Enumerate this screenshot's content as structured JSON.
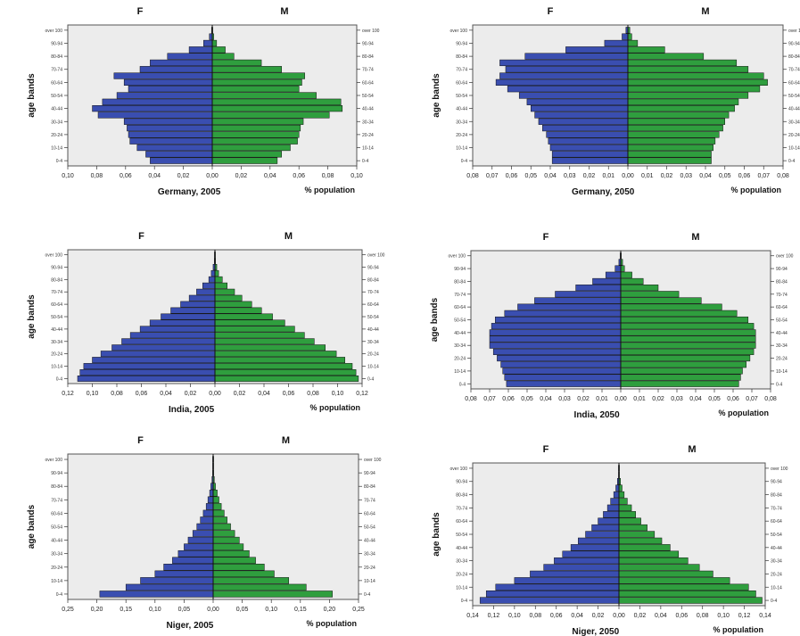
{
  "colors": {
    "female": "#3a4eb0",
    "male": "#2f9e3e",
    "plot_bg": "#ececec",
    "bar_edge": "#111111"
  },
  "shared_labels": {
    "female": "F",
    "male": "M",
    "ylabel": "age bands",
    "xunit": "% population"
  },
  "chart_data": [
    {
      "type": "bar",
      "orientation": "population-pyramid",
      "title": "Germany, 2005",
      "categories": [
        "0-4",
        "5-9",
        "10-14",
        "15-19",
        "20-24",
        "25-29",
        "30-34",
        "35-39",
        "40-44",
        "45-49",
        "50-54",
        "55-59",
        "60-64",
        "65-69",
        "70-74",
        "75-79",
        "80-84",
        "85-89",
        "90-94",
        "95-99",
        "over 100"
      ],
      "category_labels_left": [
        "0-4",
        "",
        "10-14",
        "",
        "20-24",
        "",
        "30-34",
        "",
        "40-44",
        "",
        "50-54",
        "",
        "60-64",
        "",
        "70-74",
        "",
        "80-84",
        "",
        "90-94",
        "",
        "over 100"
      ],
      "category_labels_right": [
        "0-4",
        "",
        "10-14",
        "",
        "20-24",
        "",
        "30-34",
        "",
        "40-44",
        "",
        "50-54",
        "",
        "60-64",
        "",
        "70-74",
        "",
        "80-84",
        "",
        "90-94",
        "",
        "over 100"
      ],
      "series": [
        {
          "name": "F",
          "values": [
            0.043,
            0.046,
            0.052,
            0.057,
            0.058,
            0.059,
            0.061,
            0.079,
            0.083,
            0.076,
            0.066,
            0.058,
            0.061,
            0.068,
            0.05,
            0.043,
            0.031,
            0.016,
            0.006,
            0.002,
            0.0005
          ]
        },
        {
          "name": "M",
          "values": [
            0.045,
            0.048,
            0.054,
            0.059,
            0.06,
            0.061,
            0.063,
            0.081,
            0.09,
            0.089,
            0.072,
            0.06,
            0.062,
            0.064,
            0.048,
            0.034,
            0.015,
            0.009,
            0.003,
            0.001,
            0.0003
          ]
        }
      ],
      "xlim": [
        -0.1,
        0.1
      ],
      "xticks": [
        -0.1,
        -0.08,
        -0.06,
        -0.04,
        -0.02,
        0,
        0.02,
        0.04,
        0.06,
        0.08,
        0.1
      ],
      "xtick_labels": [
        "0,10",
        "0,08",
        "0,06",
        "0,04",
        "0,02",
        "0,00",
        "0,02",
        "0,04",
        "0,06",
        "0,08",
        "0,10"
      ],
      "grid": false
    },
    {
      "type": "bar",
      "orientation": "population-pyramid",
      "title": "Germany, 2050",
      "categories": [
        "0-4",
        "5-9",
        "10-14",
        "15-19",
        "20-24",
        "25-29",
        "30-34",
        "35-39",
        "40-44",
        "45-49",
        "50-54",
        "55-59",
        "60-64",
        "65-69",
        "70-74",
        "75-79",
        "80-84",
        "85-89",
        "90-94",
        "95-99",
        "over 100"
      ],
      "category_labels_left": [
        "0-4",
        "",
        "10-14",
        "",
        "20-24",
        "",
        "30-34",
        "",
        "40-44",
        "",
        "50-54",
        "",
        "60-64",
        "",
        "70-74",
        "",
        "80-84",
        "",
        "90-94",
        "",
        "over 100"
      ],
      "category_labels_right": [
        "0-4",
        "",
        "10-14",
        "",
        "20-24",
        "",
        "30-34",
        "",
        "40-44",
        "",
        "50-54",
        "",
        "60-64",
        "",
        "70-74",
        "",
        "80-84",
        "",
        "90-94",
        "",
        "over 100"
      ],
      "series": [
        {
          "name": "F",
          "values": [
            0.039,
            0.039,
            0.04,
            0.041,
            0.042,
            0.044,
            0.046,
            0.048,
            0.05,
            0.052,
            0.056,
            0.062,
            0.068,
            0.066,
            0.063,
            0.066,
            0.053,
            0.032,
            0.012,
            0.003,
            0.001
          ]
        },
        {
          "name": "M",
          "values": [
            0.043,
            0.043,
            0.044,
            0.045,
            0.047,
            0.049,
            0.05,
            0.052,
            0.055,
            0.057,
            0.062,
            0.068,
            0.072,
            0.07,
            0.062,
            0.056,
            0.039,
            0.019,
            0.005,
            0.002,
            0.001
          ]
        }
      ],
      "xlim": [
        -0.08,
        0.08
      ],
      "xticks": [
        -0.08,
        -0.07,
        -0.06,
        -0.05,
        -0.04,
        -0.03,
        -0.02,
        -0.01,
        0,
        0.01,
        0.02,
        0.03,
        0.04,
        0.05,
        0.06,
        0.07,
        0.08
      ],
      "xtick_labels": [
        "0,08",
        "0,07",
        "0,06",
        "0,05",
        "0,04",
        "0,03",
        "0,02",
        "0,01",
        "0,00",
        "0,01",
        "0,02",
        "0,03",
        "0,04",
        "0,05",
        "0,06",
        "0,07",
        "0,08"
      ],
      "grid": false
    },
    {
      "type": "bar",
      "orientation": "population-pyramid",
      "title": "India, 2005",
      "categories": [
        "0-4",
        "5-9",
        "10-14",
        "15-19",
        "20-24",
        "25-29",
        "30-34",
        "35-39",
        "40-44",
        "45-49",
        "50-54",
        "55-59",
        "60-64",
        "65-69",
        "70-74",
        "75-79",
        "80-84",
        "85-89",
        "90-94",
        "95-99",
        "over 100"
      ],
      "category_labels_left": [
        "0-4",
        "",
        "10-14",
        "",
        "20-24",
        "",
        "30-34",
        "",
        "40-44",
        "",
        "50-54",
        "",
        "60-64",
        "",
        "70-74",
        "",
        "80-84",
        "",
        "90-94",
        "",
        "over 100"
      ],
      "category_labels_right": [
        "0-4",
        "",
        "10-14",
        "",
        "20-24",
        "",
        "30-34",
        "",
        "40-44",
        "",
        "50-54",
        "",
        "60-64",
        "",
        "70-74",
        "",
        "80-84",
        "",
        "90-94",
        "",
        "over 100"
      ],
      "series": [
        {
          "name": "F",
          "values": [
            0.112,
            0.11,
            0.107,
            0.1,
            0.093,
            0.084,
            0.076,
            0.069,
            0.061,
            0.053,
            0.044,
            0.036,
            0.028,
            0.021,
            0.015,
            0.01,
            0.005,
            0.003,
            0.0015,
            0.0005,
            0.0002
          ]
        },
        {
          "name": "M",
          "values": [
            0.117,
            0.115,
            0.112,
            0.106,
            0.099,
            0.09,
            0.081,
            0.073,
            0.065,
            0.057,
            0.047,
            0.038,
            0.03,
            0.022,
            0.016,
            0.01,
            0.006,
            0.003,
            0.0015,
            0.0005,
            0.0002
          ]
        }
      ],
      "xlim": [
        -0.12,
        0.12
      ],
      "xticks": [
        -0.12,
        -0.1,
        -0.08,
        -0.06,
        -0.04,
        -0.02,
        0,
        0.02,
        0.04,
        0.06,
        0.08,
        0.1,
        0.12
      ],
      "xtick_labels": [
        "0,12",
        "0,10",
        "0,08",
        "0,06",
        "0,04",
        "0,02",
        "0,00",
        "0,02",
        "0,04",
        "0,06",
        "0,08",
        "0,10",
        "0,12"
      ],
      "grid": false
    },
    {
      "type": "bar",
      "orientation": "population-pyramid",
      "title": "India, 2050",
      "categories": [
        "0-4",
        "5-9",
        "10-14",
        "15-19",
        "20-24",
        "25-29",
        "30-34",
        "35-39",
        "40-44",
        "45-49",
        "50-54",
        "55-59",
        "60-64",
        "65-69",
        "70-74",
        "75-79",
        "80-84",
        "85-89",
        "90-94",
        "95-99",
        "over 100"
      ],
      "category_labels_left": [
        "0-4",
        "",
        "10-14",
        "",
        "20-24",
        "",
        "30-34",
        "",
        "40-44",
        "",
        "50-54",
        "",
        "60-64",
        "",
        "70-74",
        "",
        "80-84",
        "",
        "90-94",
        "",
        "over 100"
      ],
      "category_labels_right": [
        "0-4",
        "",
        "10-14",
        "",
        "20-24",
        "",
        "30-34",
        "",
        "40-44",
        "",
        "50-54",
        "",
        "60-64",
        "",
        "70-74",
        "",
        "80-84",
        "",
        "90-94",
        "",
        "over 100"
      ],
      "series": [
        {
          "name": "F",
          "values": [
            0.061,
            0.062,
            0.063,
            0.064,
            0.066,
            0.068,
            0.07,
            0.07,
            0.07,
            0.069,
            0.067,
            0.062,
            0.055,
            0.046,
            0.035,
            0.024,
            0.015,
            0.008,
            0.003,
            0.001,
            0.0003
          ]
        },
        {
          "name": "M",
          "values": [
            0.063,
            0.064,
            0.065,
            0.067,
            0.069,
            0.071,
            0.072,
            0.072,
            0.072,
            0.071,
            0.068,
            0.062,
            0.054,
            0.043,
            0.031,
            0.02,
            0.012,
            0.006,
            0.002,
            0.001,
            0.0003
          ]
        }
      ],
      "xlim": [
        -0.08,
        0.08
      ],
      "xticks": [
        -0.08,
        -0.07,
        -0.06,
        -0.05,
        -0.04,
        -0.03,
        -0.02,
        -0.01,
        0,
        0.01,
        0.02,
        0.03,
        0.04,
        0.05,
        0.06,
        0.07,
        0.08
      ],
      "xtick_labels": [
        "0,08",
        "0,07",
        "0,06",
        "0,05",
        "0,04",
        "0,03",
        "0,02",
        "0,01",
        "0,00",
        "0,01",
        "0,02",
        "0,03",
        "0,04",
        "0,05",
        "0,06",
        "0,07",
        "0,08"
      ],
      "grid": false
    },
    {
      "type": "bar",
      "orientation": "population-pyramid",
      "title": "Niger, 2005",
      "categories": [
        "0-4",
        "5-9",
        "10-14",
        "15-19",
        "20-24",
        "25-29",
        "30-34",
        "35-39",
        "40-44",
        "45-49",
        "50-54",
        "55-59",
        "60-64",
        "65-69",
        "70-74",
        "75-79",
        "80-84",
        "85-89",
        "90-94",
        "95-99",
        "over 100"
      ],
      "category_labels_left": [
        "0-4",
        "",
        "10-14",
        "",
        "20-24",
        "",
        "30-34",
        "",
        "40-44",
        "",
        "50-54",
        "",
        "60-64",
        "",
        "70-74",
        "",
        "80-84",
        "",
        "90-94",
        "",
        "over 100"
      ],
      "category_labels_right": [
        "0-4",
        "",
        "10-14",
        "",
        "20-24",
        "",
        "30-34",
        "",
        "40-44",
        "",
        "50-54",
        "",
        "60-64",
        "",
        "70-74",
        "",
        "80-84",
        "",
        "90-94",
        "",
        "over 100"
      ],
      "series": [
        {
          "name": "F",
          "values": [
            0.195,
            0.15,
            0.125,
            0.1,
            0.085,
            0.07,
            0.06,
            0.05,
            0.043,
            0.035,
            0.028,
            0.022,
            0.017,
            0.012,
            0.009,
            0.006,
            0.004,
            0.002,
            0.001,
            0.0005,
            0.0002
          ]
        },
        {
          "name": "M",
          "values": [
            0.205,
            0.16,
            0.13,
            0.105,
            0.088,
            0.073,
            0.062,
            0.052,
            0.045,
            0.037,
            0.03,
            0.024,
            0.019,
            0.014,
            0.01,
            0.007,
            0.004,
            0.002,
            0.001,
            0.0005,
            0.0002
          ]
        }
      ],
      "xlim": [
        -0.25,
        0.25
      ],
      "xticks": [
        -0.25,
        -0.2,
        -0.15,
        -0.1,
        -0.05,
        0,
        0.05,
        0.1,
        0.15,
        0.2,
        0.25
      ],
      "xtick_labels": [
        "0,25",
        "0,20",
        "0,15",
        "0,10",
        "0,05",
        "0,00",
        "0,05",
        "0,10",
        "0,15",
        "0,20",
        "0,25"
      ],
      "grid": false
    },
    {
      "type": "bar",
      "orientation": "population-pyramid",
      "title": "Niger, 2050",
      "categories": [
        "0-4",
        "5-9",
        "10-14",
        "15-19",
        "20-24",
        "25-29",
        "30-34",
        "35-39",
        "40-44",
        "45-49",
        "50-54",
        "55-59",
        "60-64",
        "65-69",
        "70-74",
        "75-79",
        "80-84",
        "85-89",
        "90-94",
        "95-99",
        "over 100"
      ],
      "category_labels_left": [
        "0-4",
        "",
        "10-14",
        "",
        "20-24",
        "",
        "30-34",
        "",
        "40-44",
        "",
        "50-54",
        "",
        "60-64",
        "",
        "70-74",
        "",
        "80-84",
        "",
        "90-94",
        "",
        "over 100"
      ],
      "category_labels_right": [
        "0-4",
        "",
        "10-14",
        "",
        "20-24",
        "",
        "30-34",
        "",
        "40-44",
        "",
        "50-54",
        "",
        "60-64",
        "",
        "70-74",
        "",
        "80-84",
        "",
        "90-94",
        "",
        "over 100"
      ],
      "series": [
        {
          "name": "F",
          "values": [
            0.133,
            0.127,
            0.118,
            0.1,
            0.085,
            0.072,
            0.062,
            0.054,
            0.046,
            0.039,
            0.032,
            0.026,
            0.02,
            0.015,
            0.011,
            0.008,
            0.005,
            0.003,
            0.0015,
            0.0005,
            0.0002
          ]
        },
        {
          "name": "M",
          "values": [
            0.137,
            0.131,
            0.124,
            0.106,
            0.09,
            0.077,
            0.066,
            0.057,
            0.049,
            0.041,
            0.034,
            0.027,
            0.021,
            0.016,
            0.012,
            0.008,
            0.005,
            0.003,
            0.0015,
            0.0005,
            0.0002
          ]
        }
      ],
      "xlim": [
        -0.14,
        0.14
      ],
      "xticks": [
        -0.14,
        -0.12,
        -0.1,
        -0.08,
        -0.06,
        -0.04,
        -0.02,
        0,
        0.02,
        0.04,
        0.06,
        0.08,
        0.1,
        0.12,
        0.14
      ],
      "xtick_labels": [
        "0,14",
        "0,12",
        "0,10",
        "0,08",
        "0,06",
        "0,04",
        "0,02",
        "0,00",
        "0,02",
        "0,04",
        "0,06",
        "0,08",
        "0,10",
        "0,12",
        "0,14"
      ],
      "grid": false
    }
  ]
}
